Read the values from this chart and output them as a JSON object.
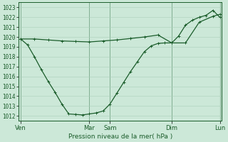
{
  "xlabel": "Pression niveau de la mer( hPa )",
  "background_color": "#cce8d8",
  "plot_bg_color": "#cce8d8",
  "grid_color": "#aacfba",
  "line_color": "#1a5c2a",
  "ylim": [
    1011.5,
    1023.5
  ],
  "yticks": [
    1012,
    1013,
    1014,
    1015,
    1016,
    1017,
    1018,
    1019,
    1020,
    1021,
    1022,
    1023
  ],
  "ytick_fontsize": 5.5,
  "xtick_labels": [
    "Ven",
    "Mar",
    "Sam",
    "Dim",
    "Lun"
  ],
  "xtick_positions": [
    0,
    10,
    13,
    22,
    29
  ],
  "vline_positions": [
    0,
    10,
    13,
    22,
    29
  ],
  "line1_x": [
    0,
    2,
    4,
    6,
    8,
    10,
    12,
    14,
    16,
    18,
    20,
    22,
    24,
    26,
    28,
    29
  ],
  "line1_y": [
    1019.8,
    1019.8,
    1019.7,
    1019.6,
    1019.55,
    1019.5,
    1019.6,
    1019.7,
    1019.85,
    1020.0,
    1020.2,
    1019.4,
    1019.4,
    1021.5,
    1022.1,
    1022.3
  ],
  "line2_x": [
    0,
    1,
    2,
    3,
    4,
    5,
    6,
    7,
    8,
    9,
    10,
    11,
    12,
    13,
    14,
    15,
    16,
    17,
    18,
    19,
    20,
    21,
    22,
    23,
    24,
    25,
    26,
    27,
    28,
    29
  ],
  "line2_y": [
    1019.8,
    1019.2,
    1018.0,
    1016.7,
    1015.5,
    1014.4,
    1013.2,
    1012.2,
    1012.15,
    1012.1,
    1012.2,
    1012.3,
    1012.5,
    1013.2,
    1014.3,
    1015.4,
    1016.5,
    1017.5,
    1018.5,
    1019.1,
    1019.35,
    1019.4,
    1019.4,
    1020.1,
    1021.2,
    1021.7,
    1022.0,
    1022.2,
    1022.7,
    1022.0
  ],
  "n_points": 30,
  "xlim": [
    -0.3,
    29.3
  ],
  "marker": "+",
  "markersize": 3.0,
  "linewidth": 0.9
}
